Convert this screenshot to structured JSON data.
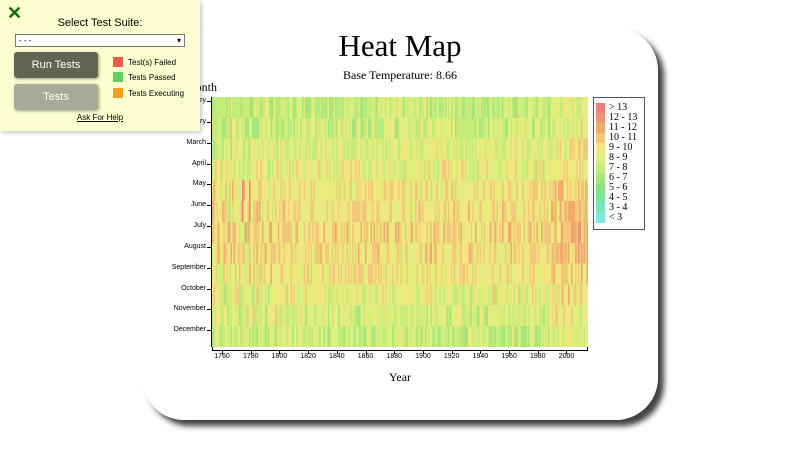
{
  "chart_data": {
    "type": "heatmap",
    "title": "Heat Map",
    "subtitle": "Base Temperature: 8.66",
    "xlabel": "Year",
    "ylabel": "Month",
    "x_range": [
      1753,
      2015
    ],
    "x_ticks": [
      "1760",
      "1780",
      "1800",
      "1820",
      "1840",
      "1860",
      "1880",
      "1900",
      "1920",
      "1940",
      "1960",
      "1980",
      "2000"
    ],
    "months": [
      "January",
      "February",
      "March",
      "April",
      "May",
      "June",
      "July",
      "August",
      "September",
      "October",
      "November",
      "December"
    ],
    "base_temperature": 8.66,
    "legend": {
      "placement": "right",
      "bins": [
        {
          "label": "> 13",
          "color": "#f07c7c"
        },
        {
          "label": "12 - 13",
          "color": "#f2956f"
        },
        {
          "label": "11 - 12",
          "color": "#f0ab6c"
        },
        {
          "label": "10 - 11",
          "color": "#f3c87b"
        },
        {
          "label": "9 - 10",
          "color": "#f2e67e"
        },
        {
          "label": "8 - 9",
          "color": "#e0ee7c"
        },
        {
          "label": "7 - 8",
          "color": "#c3ec7a"
        },
        {
          "label": "6 - 7",
          "color": "#a6e67b"
        },
        {
          "label": "5 - 6",
          "color": "#86e27e"
        },
        {
          "label": "4 - 5",
          "color": "#77e69a"
        },
        {
          "label": "3 - 4",
          "color": "#79e6c1"
        },
        {
          "label": "< 3",
          "color": "#7ce8e0"
        }
      ]
    }
  },
  "panel": {
    "title": "Select Test Suite:",
    "select_value": "- - -",
    "run_label": "Run Tests",
    "tests_label": "Tests",
    "status": [
      {
        "label": "Test(s) Failed",
        "color": "#ee5a44"
      },
      {
        "label": "Tests Passed",
        "color": "#5fd35f"
      },
      {
        "label": "Tests Executing",
        "color": "#f59e20"
      }
    ],
    "help_label": "Ask For Help",
    "close_glyph": "✕"
  }
}
